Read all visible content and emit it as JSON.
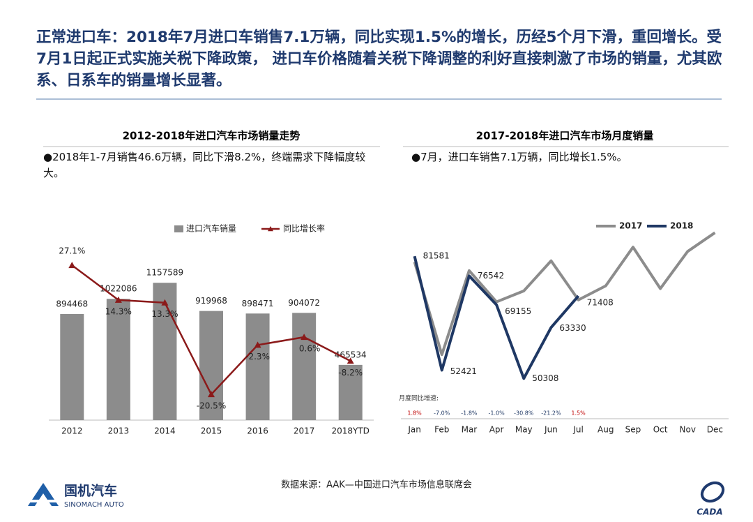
{
  "header": {
    "text": "正常进口车：2018年7月进口车销售7.1万辆，同比实现1.5%的增长，历经5个月下滑，重回增长。受7月1日起正式实施关税下降政策， 进口车价格随着关税下降调整的利好直接刺激了市场的销量，尤其欧系、日系车的销量增长显著。"
  },
  "chart_data": [
    {
      "type": "bar_line",
      "title": "2012-2018年进口汽车市场销量走势",
      "note": "●2018年1-7月销售46.6万辆，同比下滑8.2%，终端需求下降幅度较大。",
      "categories": [
        "2012",
        "2013",
        "2014",
        "2015",
        "2016",
        "2017",
        "2018YTD"
      ],
      "series": [
        {
          "name": "进口汽车销量",
          "type": "bar",
          "color": "#8c8c8c",
          "values": [
            894468,
            1022086,
            1157589,
            919968,
            898471,
            904072,
            465534
          ]
        },
        {
          "name": "同比增长率",
          "type": "line",
          "axis": "y2",
          "color": "#8b1a1a",
          "values": [
            27.1,
            14.3,
            13.3,
            -20.5,
            -2.3,
            0.6,
            -8.2
          ],
          "value_labels": [
            "27.1%",
            "14.3%",
            "13.3%",
            "-20.5%",
            "-2.3%",
            "0.6%",
            "-8.2%"
          ]
        }
      ],
      "ylim": [
        0,
        1600000
      ],
      "y2lim": [
        -30,
        40
      ]
    },
    {
      "type": "line",
      "title": "2017-2018年进口汽车市场月度销量",
      "note": "●7月，进口车销售7.1万辆，同比增长1.5%。",
      "categories": [
        "Jan",
        "Feb",
        "Mar",
        "Apr",
        "May",
        "Jun",
        "Jul",
        "Aug",
        "Sep",
        "Oct",
        "Nov",
        "Dec"
      ],
      "series": [
        {
          "name": "2017",
          "color": "#8c8c8c",
          "values": [
            80100,
            56400,
            77900,
            69900,
            72700,
            80400,
            70400,
            74000,
            83900,
            73300,
            82800,
            87600
          ]
        },
        {
          "name": "2018",
          "color": "#1f3864",
          "show_labels": true,
          "values": [
            81581,
            52421,
            76542,
            69155,
            50308,
            63330,
            71408,
            null,
            null,
            null,
            null,
            null
          ]
        }
      ],
      "ylim": [
        40000,
        90000
      ],
      "growth": {
        "label": "月度同比增速:",
        "positive_color": "#c00000",
        "negative_color": "#1f3864",
        "values": [
          1.8,
          -7.0,
          -1.8,
          -1.0,
          -30.8,
          -21.2,
          1.5
        ],
        "value_labels": [
          "1.8%",
          "-7.0%",
          "-1.8%",
          "-1.0%",
          "-30.8%",
          "-21.2%",
          "1.5%"
        ]
      }
    }
  ],
  "source": "数据来源：AAK—中国进口汽车市场信息联席会",
  "logo": {
    "name": "国机汽车",
    "subtitle": "SINOMACH AUTO"
  },
  "badge": "CADA"
}
